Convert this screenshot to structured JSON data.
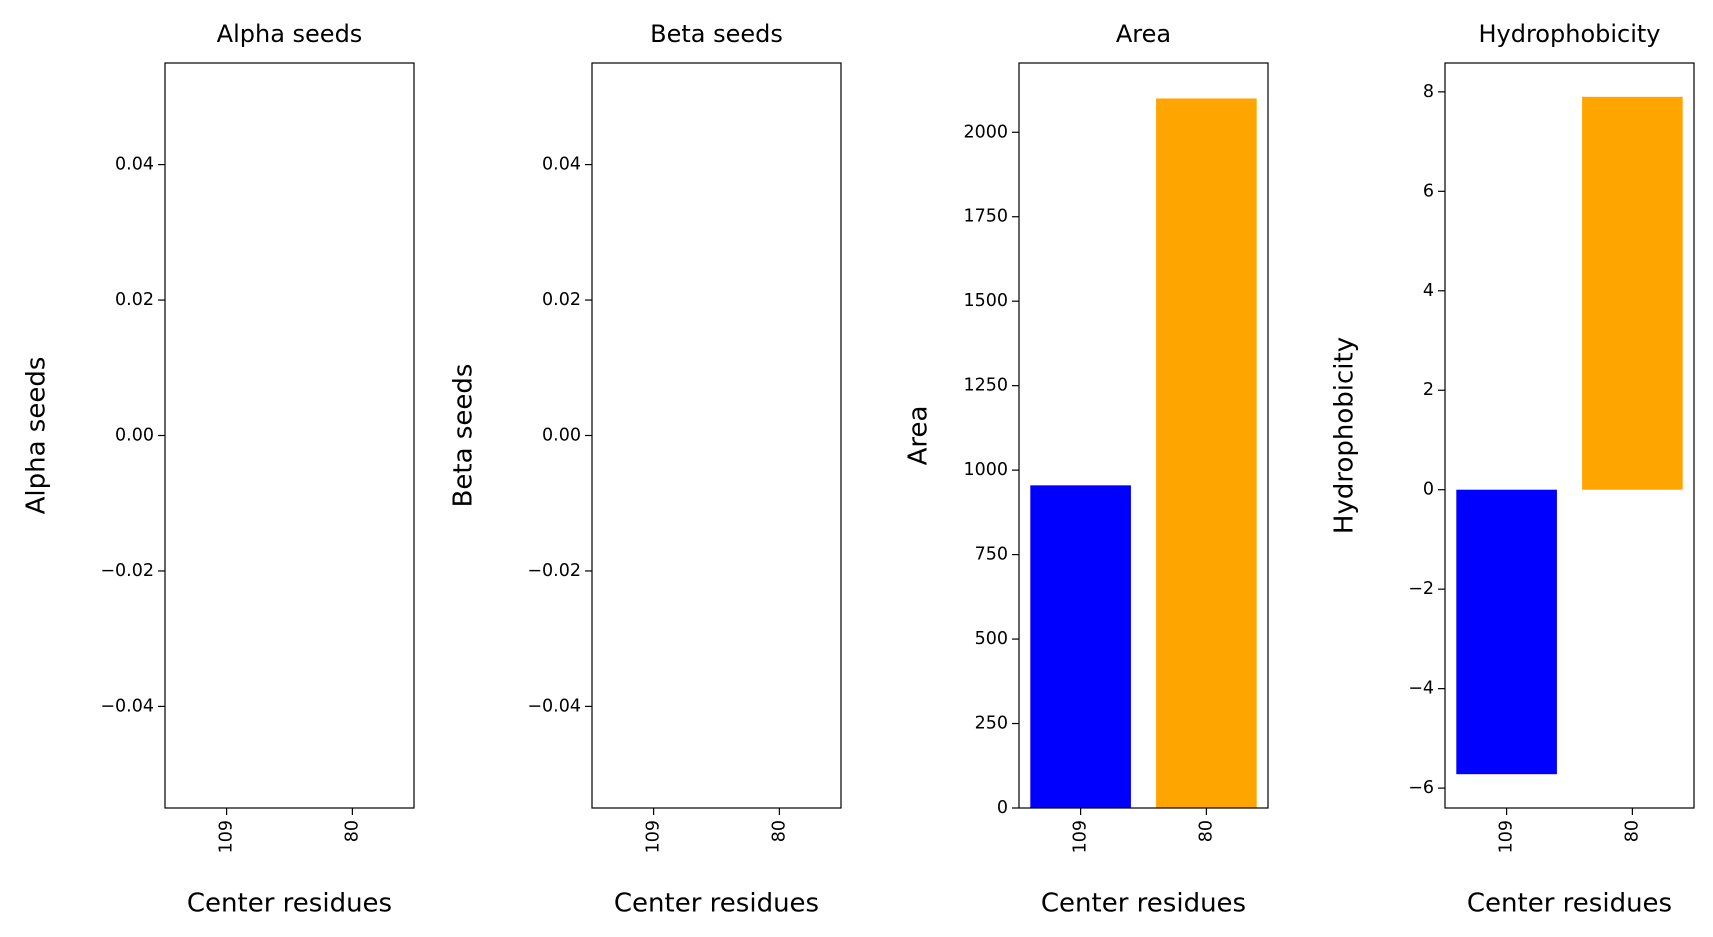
{
  "chart_data": [
    {
      "type": "bar",
      "title": "Alpha seeds",
      "ylabel": "Alpha seeds",
      "xlabel": "Center residues",
      "categories": [
        "109",
        "80"
      ],
      "values": [
        0,
        0
      ],
      "colors": [
        "blue",
        "orange"
      ],
      "ylim": [
        -0.055,
        0.055
      ],
      "yticks": [
        {
          "value": -0.04,
          "label": "−0.04"
        },
        {
          "value": -0.02,
          "label": "−0.02"
        },
        {
          "value": 0,
          "label": "0.00"
        },
        {
          "value": 0.02,
          "label": "0.02"
        },
        {
          "value": 0.04,
          "label": "0.04"
        }
      ]
    },
    {
      "type": "bar",
      "title": "Beta seeds",
      "ylabel": "Beta seeds",
      "xlabel": "Center residues",
      "categories": [
        "109",
        "80"
      ],
      "values": [
        0,
        0
      ],
      "colors": [
        "blue",
        "orange"
      ],
      "ylim": [
        -0.055,
        0.055
      ],
      "yticks": [
        {
          "value": -0.04,
          "label": "−0.04"
        },
        {
          "value": -0.02,
          "label": "−0.02"
        },
        {
          "value": 0,
          "label": "0.00"
        },
        {
          "value": 0.02,
          "label": "0.02"
        },
        {
          "value": 0.04,
          "label": "0.04"
        }
      ]
    },
    {
      "type": "bar",
      "title": "Area",
      "ylabel": "Area",
      "xlabel": "Center residues",
      "categories": [
        "109",
        "80"
      ],
      "values": [
        955,
        2100
      ],
      "colors": [
        "blue",
        "orange"
      ],
      "ylim": [
        0,
        2205
      ],
      "yticks": [
        0,
        250,
        500,
        750,
        1000,
        1250,
        1500,
        1750,
        2000
      ]
    },
    {
      "type": "bar",
      "title": "Hydrophobicity",
      "ylabel": "Hydrophobicity",
      "xlabel": "Center residues",
      "categories": [
        "109",
        "80"
      ],
      "values": [
        -5.72,
        7.9
      ],
      "colors": [
        "blue",
        "orange"
      ],
      "ylim": [
        -6.4,
        8.58
      ],
      "yticks": [
        {
          "value": -6,
          "label": "−6"
        },
        {
          "value": -4,
          "label": "−4"
        },
        {
          "value": -2,
          "label": "−2"
        },
        0,
        2,
        4,
        6,
        8
      ]
    }
  ]
}
